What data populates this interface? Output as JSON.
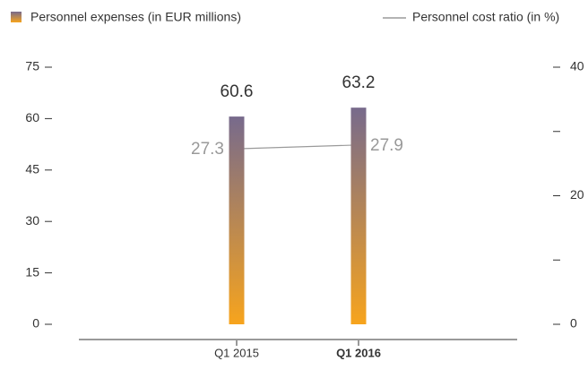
{
  "chart_data": {
    "type": "bar_line",
    "categories": [
      "Q1 2015",
      "Q1 2016"
    ],
    "highlight_index": 1,
    "series": [
      {
        "name": "Personnel expenses (in EUR millions)",
        "type": "bar",
        "color_top": "#776a8c",
        "color_bottom": "#f7a41d",
        "values": [
          60.6,
          63.2
        ]
      },
      {
        "name": "Personnel cost ratio (in %)",
        "type": "line",
        "axis": "y2",
        "color": "#9a9a9a",
        "values": [
          27.3,
          27.9
        ]
      }
    ],
    "ylim": [
      0,
      75
    ],
    "yticks": [
      0,
      15,
      30,
      45,
      60,
      75
    ],
    "y2lim": [
      0,
      40
    ],
    "y2ticks": [
      0,
      20,
      40
    ],
    "y2minor_ticks": [
      10,
      30
    ]
  }
}
